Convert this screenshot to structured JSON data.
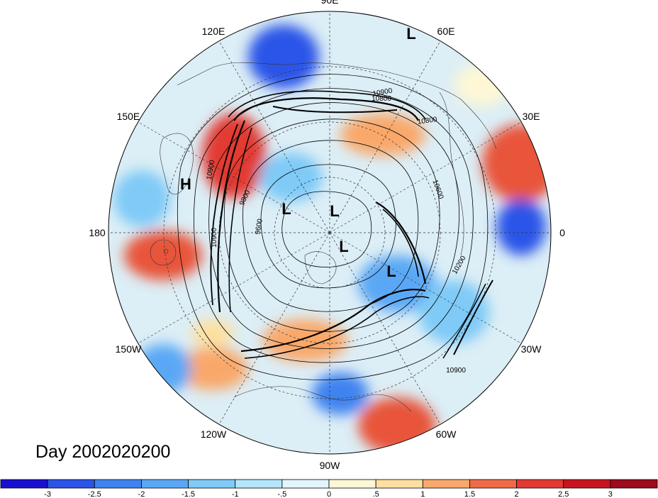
{
  "map": {
    "projection": "north-polar-stereographic",
    "lon_labels": [
      {
        "text": "90E",
        "lon": 90
      },
      {
        "text": "60E",
        "lon": 60
      },
      {
        "text": "30E",
        "lon": 30
      },
      {
        "text": "0",
        "lon": 0
      },
      {
        "text": "30W",
        "lon": -30
      },
      {
        "text": "60W",
        "lon": -60
      },
      {
        "text": "90W",
        "lon": -90
      },
      {
        "text": "120W",
        "lon": -120
      },
      {
        "text": "150W",
        "lon": -150
      },
      {
        "text": "180",
        "lon": 180
      },
      {
        "text": "150E",
        "lon": 150
      },
      {
        "text": "120E",
        "lon": 120
      }
    ],
    "pressure_centers": [
      {
        "type": "H",
        "text": "H"
      },
      {
        "type": "L",
        "text": "L"
      },
      {
        "type": "L",
        "text": "L"
      },
      {
        "type": "L",
        "text": "L"
      },
      {
        "type": "L",
        "text": "L"
      },
      {
        "type": "L",
        "text": "L"
      }
    ],
    "contour_labels": [
      "10900",
      "10800",
      "10800",
      "10600",
      "10900",
      "9800",
      "9600",
      "10900",
      "10200",
      "10900"
    ],
    "date_label": "Day 2002020200"
  },
  "colorbar": {
    "tick_labels": [
      "-3",
      "-2.5",
      "-2",
      "-1.5",
      "-1",
      "-.5",
      "0",
      ".5",
      "1",
      "1.5",
      "2",
      "2.5",
      "3"
    ],
    "colors": [
      "#1a0fd0",
      "#2b54e8",
      "#3f83f0",
      "#5aa8f5",
      "#7fcaf7",
      "#b4e6fb",
      "#e2f5fc",
      "#fdf7d6",
      "#fde0a0",
      "#f9a86b",
      "#f06a48",
      "#e23a33",
      "#c8141f",
      "#9e0a1e"
    ]
  }
}
